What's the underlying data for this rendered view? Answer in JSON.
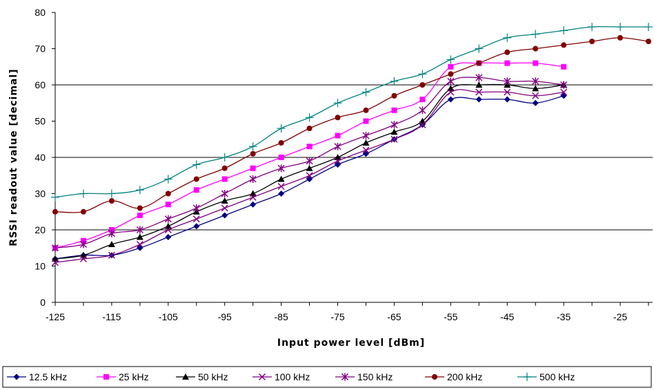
{
  "chart_data": {
    "type": "line",
    "xlabel": "Input power level [dBm]",
    "ylabel": "RSSI readout value [decimal]",
    "xlim": [
      -125,
      -20
    ],
    "ylim": [
      0,
      80
    ],
    "x_ticks": [
      -125,
      -115,
      -105,
      -95,
      -85,
      -75,
      -65,
      -55,
      -45,
      -35,
      -25
    ],
    "y_ticks": [
      0,
      10,
      20,
      30,
      40,
      50,
      60,
      70,
      80
    ],
    "grid": "horizontal at 20, 40, 60",
    "legend_position": "bottom",
    "series": [
      {
        "name": "12.5 kHz",
        "color": "#000080",
        "marker": "diamond",
        "x": [
          -125,
          -120,
          -115,
          -110,
          -105,
          -100,
          -95,
          -90,
          -85,
          -80,
          -75,
          -70,
          -65,
          -60,
          -55,
          -50,
          -45,
          -40,
          -35
        ],
        "y": [
          12,
          13,
          13,
          15,
          18,
          21,
          24,
          27,
          30,
          34,
          38,
          41,
          45,
          49,
          56,
          56,
          56,
          55,
          57
        ]
      },
      {
        "name": "25 kHz",
        "color": "#FF00FF",
        "marker": "square",
        "x": [
          -125,
          -120,
          -115,
          -110,
          -105,
          -100,
          -95,
          -90,
          -85,
          -80,
          -75,
          -70,
          -65,
          -60,
          -55,
          -50,
          -45,
          -40,
          -35
        ],
        "y": [
          15,
          17,
          20,
          24,
          27,
          31,
          34,
          37,
          40,
          43,
          46,
          50,
          53,
          56,
          65,
          66,
          66,
          66,
          65
        ]
      },
      {
        "name": "50 kHz",
        "color": "#000000",
        "marker": "triangle",
        "x": [
          -125,
          -120,
          -115,
          -110,
          -105,
          -100,
          -95,
          -90,
          -85,
          -80,
          -75,
          -70,
          -65,
          -60,
          -55,
          -50,
          -45,
          -40,
          -35
        ],
        "y": [
          12,
          13,
          16,
          18,
          21,
          25,
          28,
          30,
          34,
          37,
          40,
          44,
          47,
          50,
          59,
          60,
          60,
          59,
          60
        ]
      },
      {
        "name": "100 kHz",
        "color": "#800080",
        "marker": "x",
        "x": [
          -125,
          -120,
          -115,
          -110,
          -105,
          -100,
          -95,
          -90,
          -85,
          -80,
          -75,
          -70,
          -65,
          -60,
          -55,
          -50,
          -45,
          -40,
          -35
        ],
        "y": [
          11,
          12,
          13,
          16,
          20,
          23,
          26,
          29,
          32,
          35,
          39,
          42,
          45,
          49,
          58,
          58,
          58,
          57,
          58
        ]
      },
      {
        "name": "150 kHz",
        "color": "#800080",
        "marker": "star",
        "x": [
          -125,
          -120,
          -115,
          -110,
          -105,
          -100,
          -95,
          -90,
          -85,
          -80,
          -75,
          -70,
          -65,
          -60,
          -55,
          -50,
          -45,
          -40,
          -35
        ],
        "y": [
          15,
          16,
          19,
          20,
          23,
          26,
          30,
          34,
          37,
          39,
          43,
          46,
          49,
          53,
          61,
          62,
          61,
          61,
          60
        ]
      },
      {
        "name": "200 kHz",
        "color": "#800000",
        "marker": "circle",
        "x": [
          -125,
          -120,
          -115,
          -110,
          -105,
          -100,
          -95,
          -90,
          -85,
          -80,
          -75,
          -70,
          -65,
          -60,
          -55,
          -50,
          -45,
          -40,
          -35,
          -30,
          -25,
          -20
        ],
        "y": [
          25,
          25,
          28,
          26,
          30,
          34,
          37,
          41,
          44,
          48,
          51,
          53,
          57,
          60,
          63,
          66,
          69,
          70,
          71,
          72,
          73,
          72
        ]
      },
      {
        "name": "500 kHz",
        "color": "#008080",
        "marker": "plus",
        "x": [
          -125,
          -120,
          -115,
          -110,
          -105,
          -100,
          -95,
          -90,
          -85,
          -80,
          -75,
          -70,
          -65,
          -60,
          -55,
          -50,
          -45,
          -40,
          -35,
          -30,
          -25,
          -20
        ],
        "y": [
          29,
          30,
          30,
          31,
          34,
          38,
          40,
          43,
          48,
          51,
          55,
          58,
          61,
          63,
          67,
          70,
          73,
          74,
          75,
          76,
          76,
          76
        ]
      }
    ]
  }
}
